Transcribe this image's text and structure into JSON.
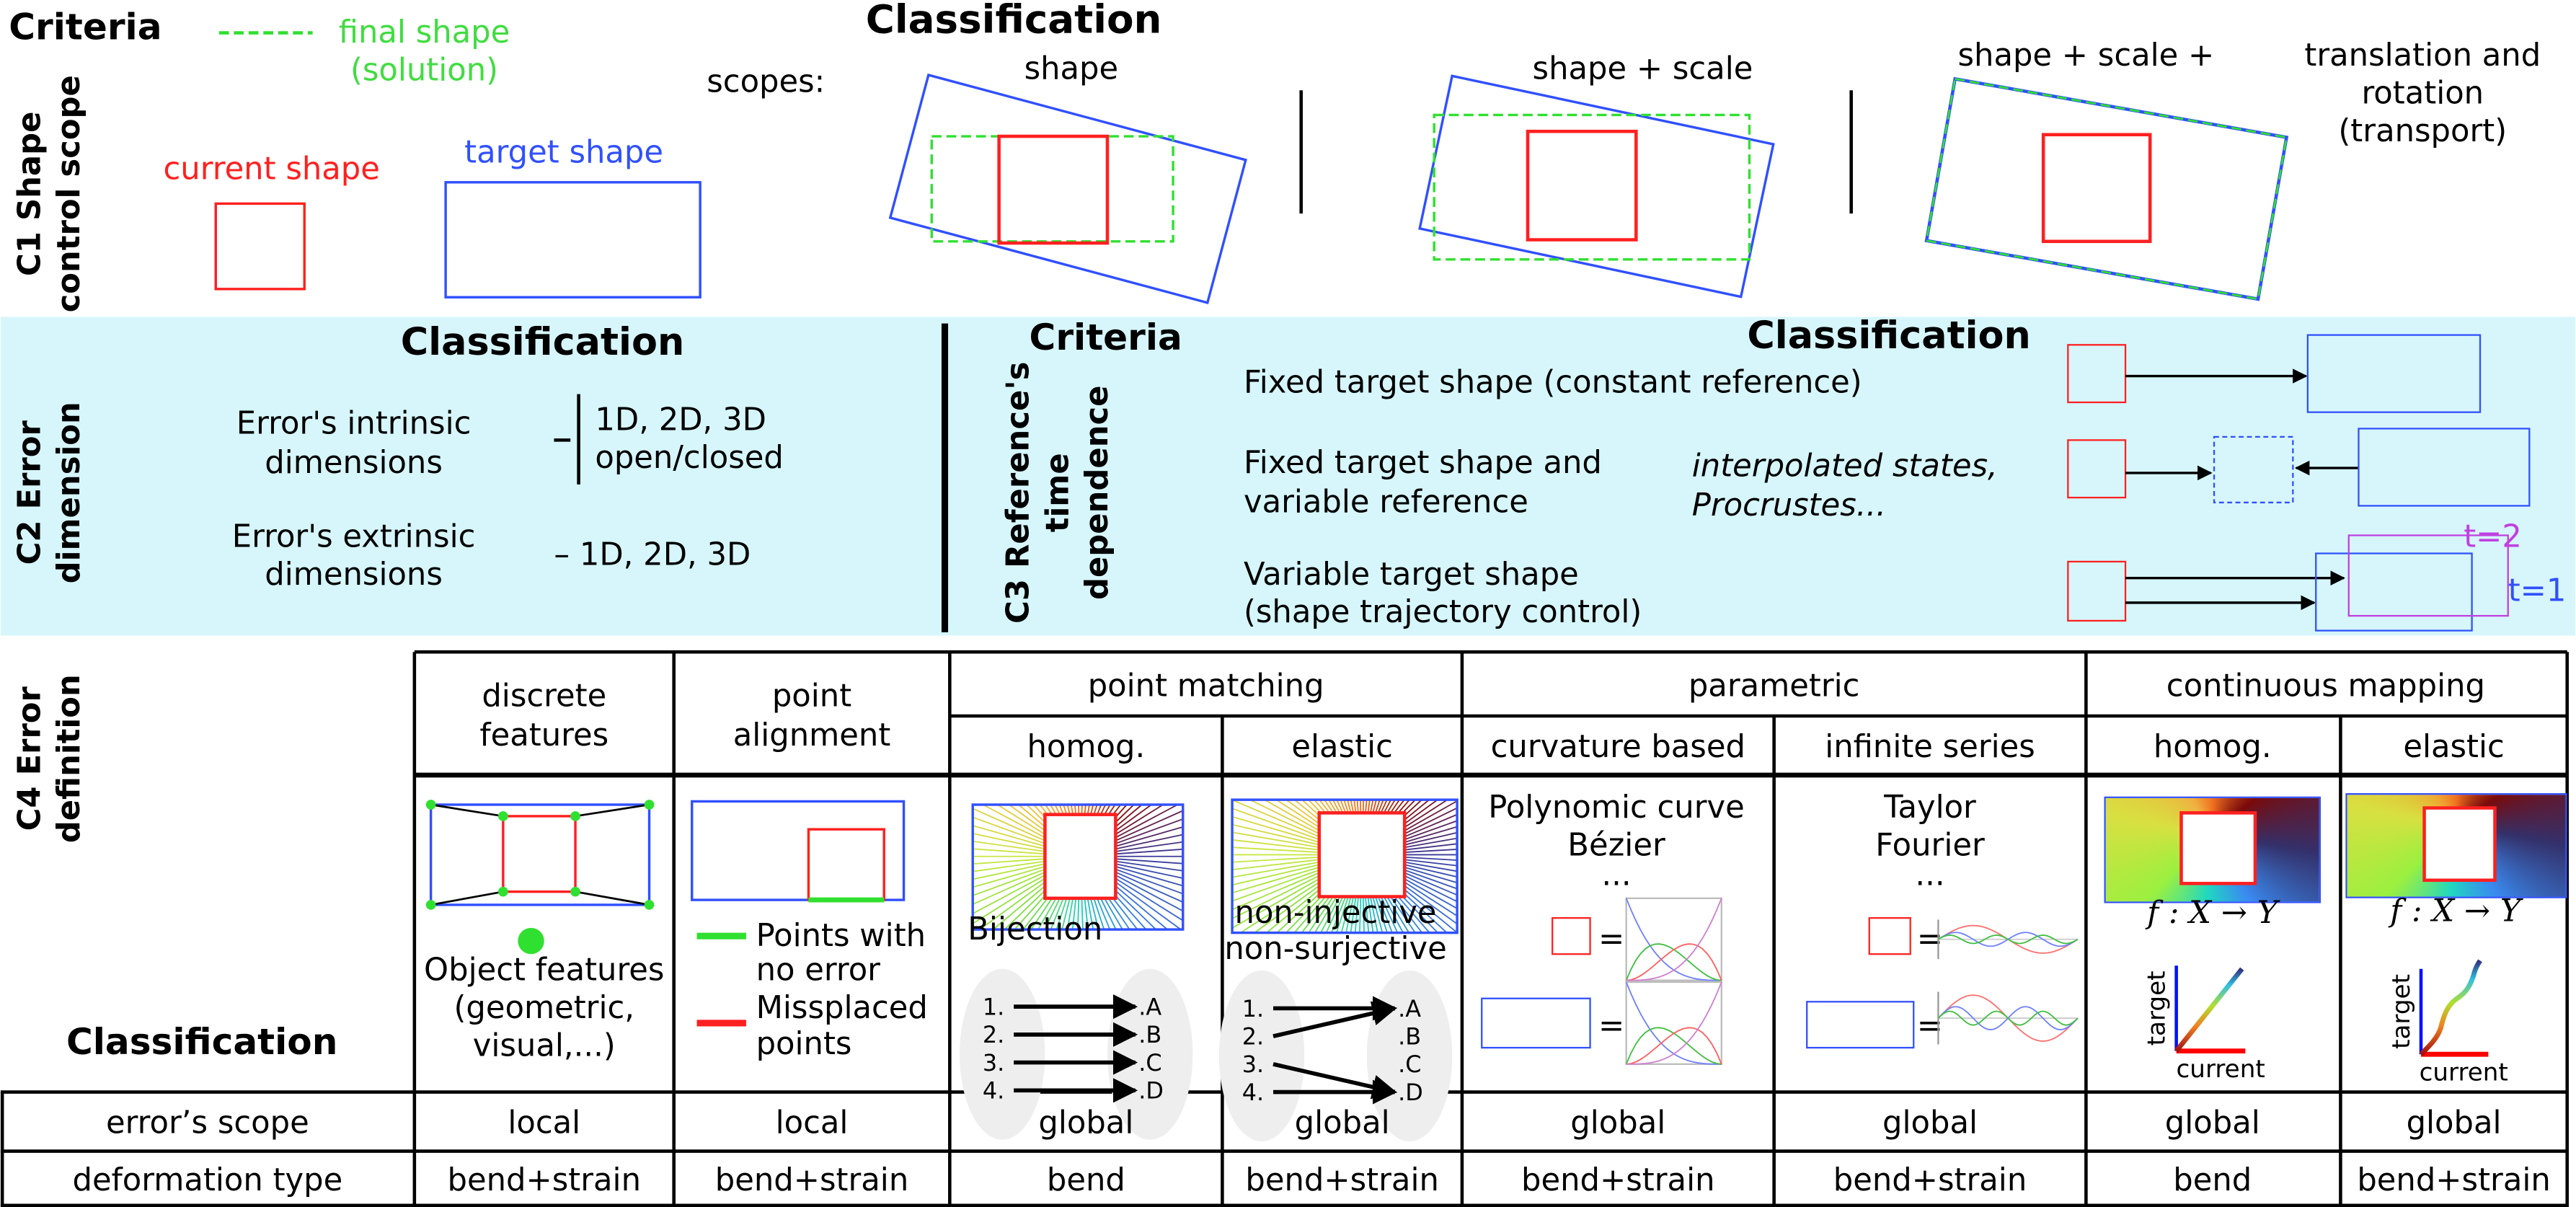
{
  "colors": {
    "current": "#ff2020",
    "target": "#3050ff",
    "final": "#30e030",
    "band": "#d6f6fb",
    "t2": "#c040e0",
    "t1": "#3050ff"
  },
  "c1": {
    "criteria": "Criteria",
    "label_line1": "C1  Shape",
    "label_line2": "control scope",
    "final_shape": "final shape",
    "solution": "(solution)",
    "current_shape": "current shape",
    "target_shape": "target shape",
    "scopes": "scopes:",
    "classification": "Classification",
    "scope_shape": "shape",
    "scope_shape_scale": "shape + scale",
    "scope_full_1": "shape + scale +",
    "scope_full_2": "translation and",
    "scope_full_3": "rotation",
    "scope_full_4": "(transport)"
  },
  "c2": {
    "label_line1": "C2  Error",
    "label_line2": "dimension",
    "classification": "Classification",
    "intrinsic_1": "Error's intrinsic",
    "intrinsic_2": "dimensions",
    "intrinsic_val_1": "1D, 2D, 3D",
    "intrinsic_val_2": "open/closed",
    "extrinsic_1": "Error's extrinsic",
    "extrinsic_2": "dimensions",
    "extrinsic_val": "– 1D, 2D, 3D"
  },
  "c3": {
    "criteria": "Criteria",
    "label_line1": "C3 Reference's",
    "label_line2": "time",
    "label_line3": "dependence",
    "classification": "Classification",
    "fixed": "Fixed target shape (constant reference)",
    "fixed_var_1": "Fixed target shape and",
    "fixed_var_2": "variable reference",
    "note_1": "interpolated states,",
    "note_2": "Procrustes...",
    "variable_1": "Variable target shape",
    "variable_2": "(shape trajectory control)",
    "t2": "t=2",
    "t1": "t=1"
  },
  "c4": {
    "label_line1": "C4  Error",
    "label_line2": "definition",
    "classification": "Classification",
    "headers": {
      "discrete_1": "discrete",
      "discrete_2": "features",
      "point_1": "point",
      "point_2": "alignment",
      "point_matching": "point matching",
      "parametric": "parametric",
      "continuous": "continuous mapping",
      "homog": "homog.",
      "elastic": "elastic",
      "curvature": "curvature based",
      "infinite": "infinite series",
      "c_homog": "homog.",
      "c_elastic": "elastic"
    },
    "discrete": {
      "l1": "Object features",
      "l2": "(geometric,",
      "l3": "visual,...)"
    },
    "alignment": {
      "good_1": "Points with",
      "good_2": "no error",
      "bad_1": "Missplaced",
      "bad_2": "points"
    },
    "homog": {
      "label": "Bijection",
      "left": [
        "1.",
        "2.",
        "3.",
        "4."
      ],
      "right": [
        ".A",
        ".B",
        ".C",
        ".D"
      ]
    },
    "elastic": {
      "label_1": "non-injective",
      "label_2": "non-surjective",
      "left": [
        "1.",
        "2.",
        "3.",
        "4."
      ],
      "right": [
        ".A",
        ".B",
        ".C",
        ".D"
      ]
    },
    "curvature": {
      "l1": "Polynomic curve",
      "l2": "Bézier",
      "l3": "...",
      "eq": "="
    },
    "infinite": {
      "l1": "Taylor",
      "l2": "Fourier",
      "l3": "...",
      "eq": "="
    },
    "mapping": {
      "formula": "f : X → Y",
      "ylabel": "target",
      "xlabel": "current"
    },
    "rows": [
      {
        "label": "error’s scope",
        "values": [
          "local",
          "local",
          "global",
          "global",
          "global",
          "global",
          "global",
          "global"
        ]
      },
      {
        "label": "deformation type",
        "values": [
          "bend+strain",
          "bend+strain",
          "bend",
          "bend+strain",
          "bend+strain",
          "bend+strain",
          "bend",
          "bend+strain"
        ]
      }
    ]
  }
}
